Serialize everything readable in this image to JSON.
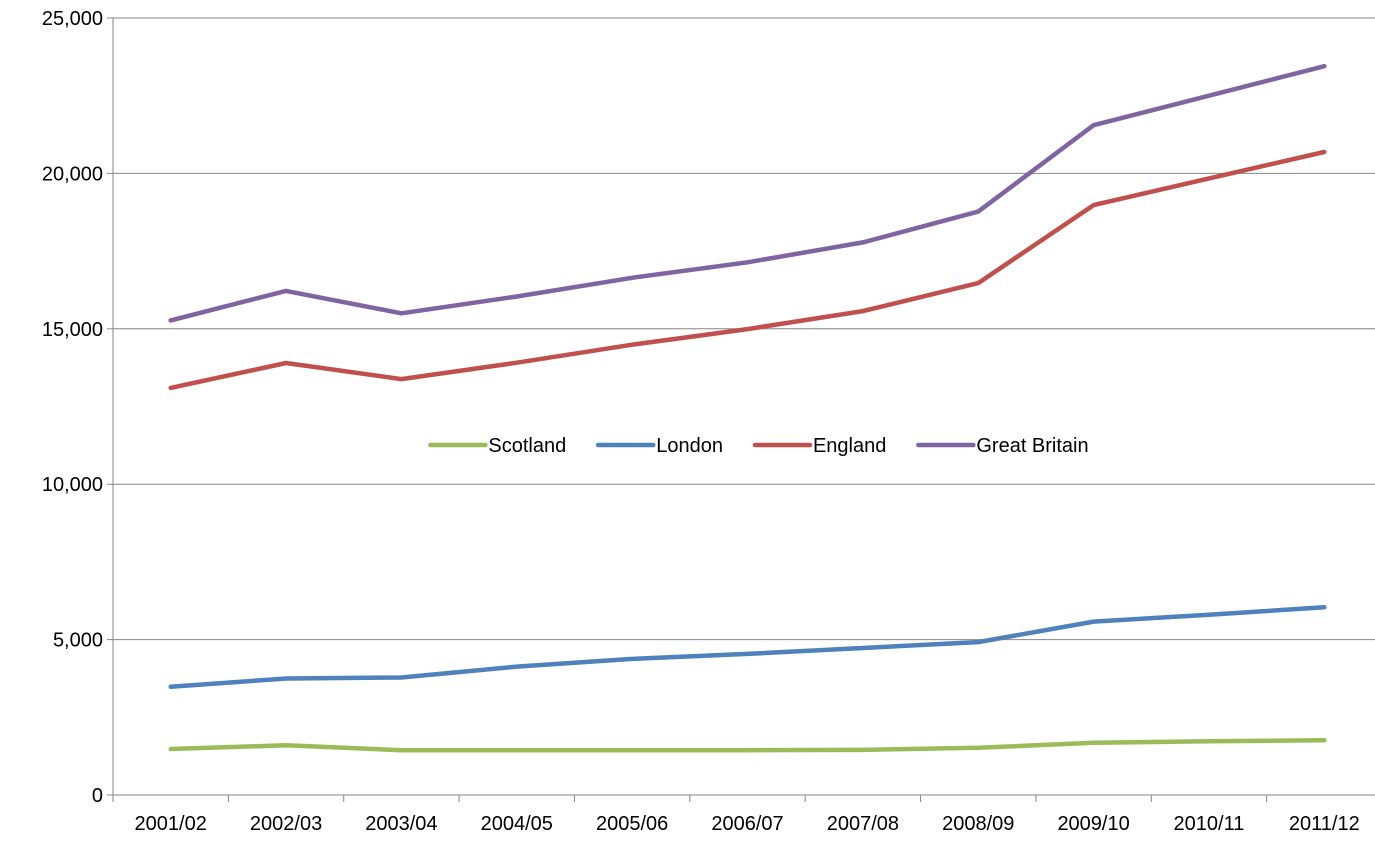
{
  "chart_data": {
    "type": "line",
    "categories": [
      "2001/02",
      "2002/03",
      "2003/04",
      "2004/05",
      "2005/06",
      "2006/07",
      "2007/08",
      "2008/09",
      "2009/10",
      "2010/11",
      "2011/12"
    ],
    "series": [
      {
        "name": "Scotland",
        "color": "#9BBB59",
        "values": [
          1480,
          1600,
          1440,
          1440,
          1440,
          1440,
          1450,
          1520,
          1680,
          1730,
          1760
        ]
      },
      {
        "name": "London",
        "color": "#4F81BD",
        "values": [
          3480,
          3750,
          3780,
          4130,
          4380,
          4540,
          4730,
          4920,
          5580,
          5800,
          6040
        ]
      },
      {
        "name": "England",
        "color": "#C0504D",
        "values": [
          13100,
          13900,
          13380,
          13910,
          14490,
          14990,
          15570,
          16470,
          18980,
          19840,
          20690
        ]
      },
      {
        "name": "Great Britain",
        "color": "#8064A2",
        "values": [
          15270,
          16220,
          15500,
          16040,
          16640,
          17140,
          17780,
          18770,
          21550,
          22500,
          23450
        ]
      }
    ],
    "ylim": [
      0,
      25000
    ],
    "yticks": [
      0,
      5000,
      10000,
      15000,
      20000,
      25000
    ],
    "ytick_labels": [
      "0",
      "5,000",
      "10,000",
      "15,000",
      "20,000",
      "25,000"
    ],
    "grid": true,
    "legend": "center",
    "title": "",
    "xlabel": "",
    "ylabel": ""
  }
}
